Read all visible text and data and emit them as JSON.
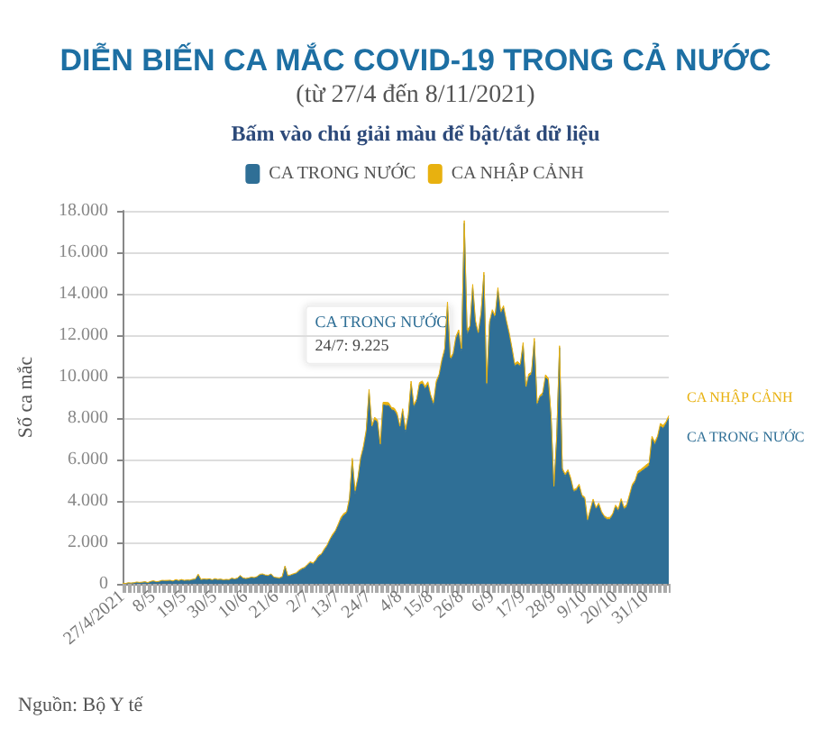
{
  "chart_data": {
    "type": "area",
    "title": "DIỄN BIẾN CA MẮC COVID-19 TRONG CẢ NƯỚC",
    "subtitle": "(từ 27/4 đến 8/11/2021)",
    "ylabel": "Số ca mắc",
    "annotations": [
      "Bấm vào chú giải màu để bật/tắt dữ liệu",
      {
        "text": "24/7: 9.225",
        "x": "24/7",
        "y": 9225
      },
      "Nguồn: Bộ Y tế"
    ],
    "categories": [
      "27/4/2021",
      null,
      null,
      null,
      null,
      null,
      null,
      null,
      null,
      null,
      null,
      "8/5",
      null,
      null,
      null,
      null,
      null,
      null,
      null,
      null,
      null,
      null,
      "19/5",
      null,
      null,
      null,
      null,
      null,
      null,
      null,
      null,
      null,
      null,
      "30/5",
      null,
      null,
      null,
      null,
      null,
      null,
      null,
      null,
      null,
      null,
      "10/6",
      null,
      null,
      null,
      null,
      null,
      null,
      null,
      null,
      null,
      null,
      "21/6",
      null,
      null,
      null,
      null,
      null,
      null,
      null,
      null,
      null,
      null,
      "2/7",
      null,
      null,
      null,
      null,
      null,
      null,
      null,
      null,
      null,
      null,
      "13/7",
      null,
      null,
      null,
      null,
      null,
      null,
      null,
      null,
      null,
      null,
      "24/7",
      null,
      null,
      null,
      null,
      null,
      null,
      null,
      null,
      null,
      null,
      "4/8",
      null,
      null,
      null,
      null,
      null,
      null,
      null,
      null,
      null,
      null,
      "15/8",
      null,
      null,
      null,
      null,
      null,
      null,
      null,
      null,
      null,
      null,
      "26/8",
      null,
      null,
      null,
      null,
      null,
      null,
      null,
      null,
      null,
      null,
      "6/9",
      null,
      null,
      null,
      null,
      null,
      null,
      null,
      null,
      null,
      null,
      "17/9",
      null,
      null,
      null,
      null,
      null,
      null,
      null,
      null,
      null,
      null,
      "28/9",
      null,
      null,
      null,
      null,
      null,
      null,
      null,
      null,
      null,
      null,
      "9/10",
      null,
      null,
      null,
      null,
      null,
      null,
      null,
      null,
      null,
      null,
      "20/10",
      null,
      null,
      null,
      null,
      null,
      null,
      null,
      null,
      null,
      null,
      "31/10",
      null,
      null,
      null,
      null,
      null,
      null,
      null,
      null
    ],
    "series": [
      {
        "name": "CA TRONG NƯỚC",
        "color": "#2f6f96",
        "values": [
          20,
          10,
          30,
          25,
          40,
          60,
          50,
          70,
          80,
          45,
          100,
          120,
          90,
          110,
          150,
          140,
          130,
          160,
          120,
          180,
          150,
          190,
          140,
          170,
          160,
          200,
          210,
          430,
          190,
          220,
          200,
          230,
          180,
          220,
          190,
          210,
          170,
          200,
          180,
          240,
          220,
          250,
          380,
          260,
          240,
          270,
          300,
          280,
          330,
          420,
          450,
          400,
          380,
          460,
          300,
          280,
          250,
          320,
          840,
          350,
          400,
          450,
          500,
          600,
          700,
          750,
          900,
          1000,
          950,
          1100,
          1300,
          1400,
          1600,
          1800,
          2100,
          2300,
          2500,
          2800,
          3100,
          3300,
          3400,
          4000,
          5950,
          4300,
          5000,
          6000,
          6500,
          7300,
          9225,
          7500,
          7900,
          7800,
          6600,
          8640,
          8600,
          8600,
          8400,
          8350,
          8100,
          7500,
          8350,
          7300,
          8000,
          9650,
          8500,
          8800,
          9600,
          9650,
          9400,
          9600,
          9000,
          8600,
          9650,
          10000,
          10700,
          11200,
          13400,
          10800,
          11000,
          11800,
          12100,
          11200,
          17400,
          12000,
          12300,
          14300,
          12500,
          12000,
          13000,
          14900,
          9500,
          12500,
          13100,
          12800,
          14150,
          13000,
          13300,
          12600,
          12000,
          11300,
          10500,
          10600,
          10500,
          11500,
          9400,
          10000,
          10100,
          11700,
          8600,
          9000,
          9100,
          9950,
          9800,
          8000,
          4600,
          7000,
          11400,
          5450,
          5200,
          5400,
          5000,
          4450,
          4500,
          4700,
          4200,
          4100,
          3000,
          3500,
          4000,
          3600,
          3800,
          3400,
          3200,
          3100,
          3100,
          3300,
          3700,
          3500,
          4000,
          3600,
          3700,
          4200,
          4700,
          4900,
          5300,
          5400,
          5500,
          5600,
          5700,
          7000,
          6700,
          7000,
          7600,
          7500,
          7700,
          7975
        ]
      },
      {
        "name": "CA NHẬP CẢNH",
        "color": "#e8b10f",
        "values": [
          10,
          5,
          20,
          15,
          10,
          30,
          20,
          10,
          25,
          15,
          20,
          30,
          15,
          10,
          20,
          25,
          40,
          15,
          20,
          30,
          10,
          20,
          35,
          15,
          25,
          20,
          30,
          40,
          20,
          25,
          30,
          15,
          20,
          35,
          25,
          20,
          30,
          15,
          25,
          40,
          20,
          30,
          25,
          35,
          20,
          15,
          30,
          25,
          20,
          40,
          30,
          25,
          35,
          20,
          30,
          25,
          40,
          30,
          20,
          50,
          35,
          40,
          30,
          60,
          45,
          50,
          40,
          70,
          55,
          60,
          80,
          50,
          90,
          70,
          60,
          100,
          80,
          90,
          120,
          100,
          80,
          150,
          110,
          200,
          120,
          100,
          150,
          130,
          160,
          120,
          140,
          100,
          150,
          120,
          160,
          140,
          110,
          130,
          150,
          120,
          100,
          140,
          160,
          130,
          150,
          120,
          110,
          140,
          130,
          150,
          120,
          160,
          140,
          110,
          130,
          150,
          200,
          130,
          120,
          140,
          160,
          150,
          130,
          250,
          140,
          150,
          200,
          130,
          120,
          140,
          180,
          150,
          130,
          160,
          140,
          150,
          120,
          130,
          140,
          110,
          120,
          130,
          100,
          140,
          120,
          130,
          110,
          150,
          120,
          100,
          130,
          140,
          120,
          100,
          110,
          150,
          90,
          130,
          100,
          110,
          120,
          90,
          100,
          110,
          80,
          90,
          100,
          110,
          90,
          80,
          100,
          90,
          80,
          100,
          110,
          90,
          100,
          120,
          110,
          100,
          130,
          120,
          110,
          100,
          140,
          120,
          130,
          150,
          140,
          120,
          160,
          130,
          140,
          150,
          120,
          140
        ]
      }
    ],
    "stacked": true,
    "ylim": [
      0,
      18000
    ],
    "yticks": [
      {
        "value": 0,
        "label": "0"
      },
      {
        "value": 2000,
        "label": "2.000"
      },
      {
        "value": 4000,
        "label": "4.000"
      },
      {
        "value": 6000,
        "label": "6.000"
      },
      {
        "value": 8000,
        "label": "8.000"
      },
      {
        "value": 10000,
        "label": "10.000"
      },
      {
        "value": 12000,
        "label": "12.000"
      },
      {
        "value": 14000,
        "label": "14.000"
      },
      {
        "value": 16000,
        "label": "16.000"
      },
      {
        "value": 18000,
        "label": "18.000"
      }
    ],
    "grid": "y",
    "legend": "top"
  }
}
